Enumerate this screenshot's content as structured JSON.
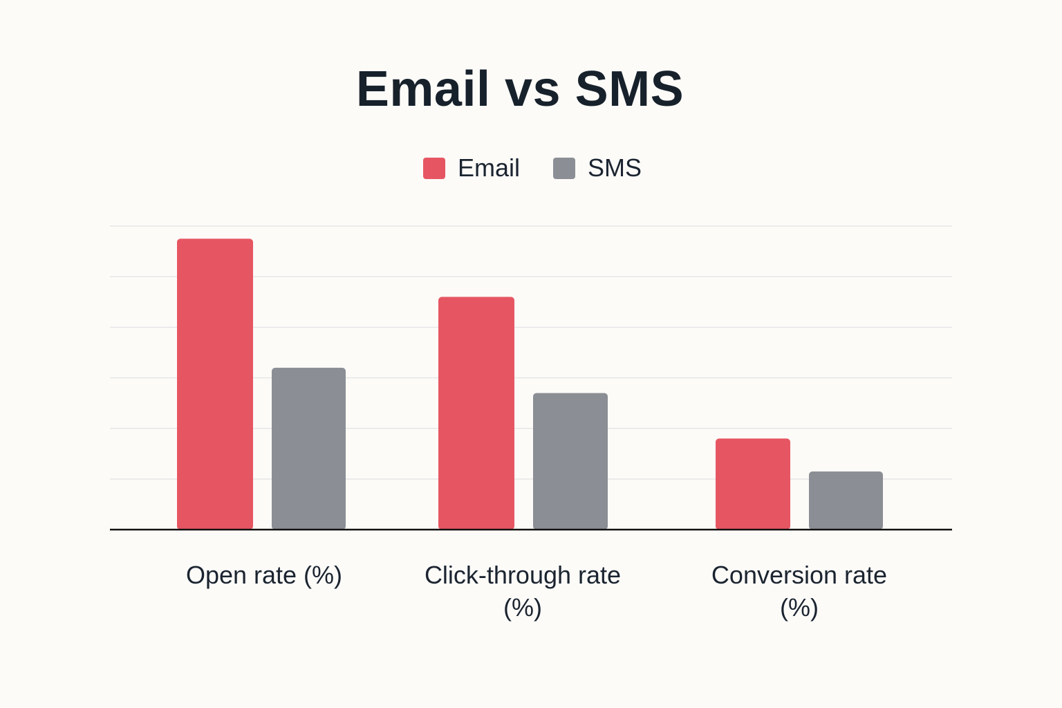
{
  "chart_data": {
    "type": "bar",
    "title": "Email vs SMS",
    "xlabel": "",
    "ylabel": "",
    "categories": [
      "Open rate (%)",
      "Click-through rate (%)",
      "Conversion rate (%)"
    ],
    "series": [
      {
        "name": "Email",
        "color": "#e65662",
        "values": [
          5.75,
          4.6,
          1.8
        ]
      },
      {
        "name": "SMS",
        "color": "#8b8e94",
        "values": [
          3.2,
          2.7,
          1.15
        ]
      }
    ],
    "ylim": [
      0,
      6
    ],
    "y_ticks": [
      0,
      1,
      2,
      3,
      4,
      5,
      6
    ],
    "y_tick_labels_shown": false,
    "grid": true,
    "legend_position": "top-center"
  }
}
